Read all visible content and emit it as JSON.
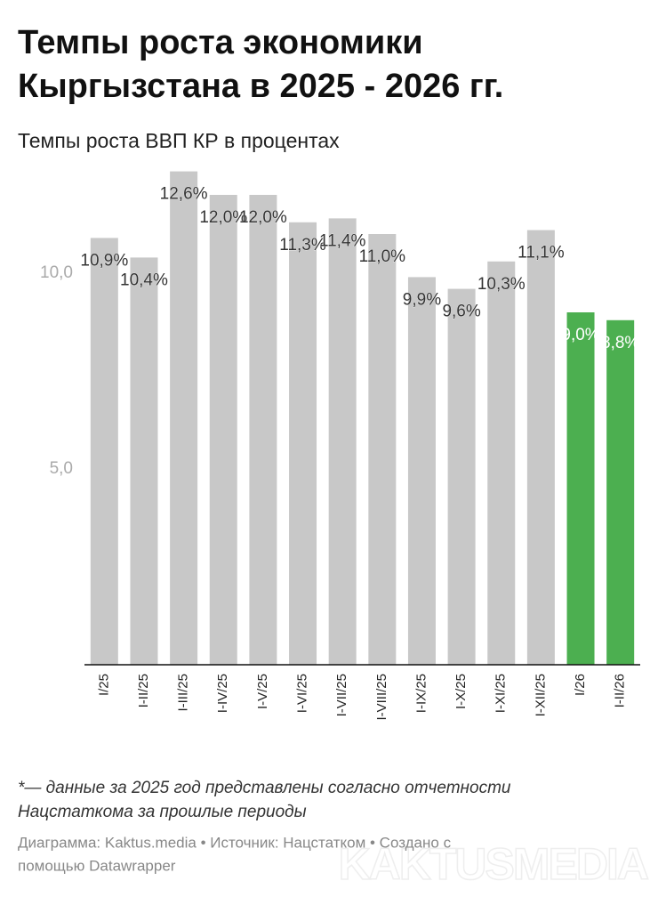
{
  "chart_data": {
    "type": "bar",
    "title": [
      "Темпы роста экономики",
      "Кыргызстана в 2025 - 2026 гг."
    ],
    "subtitle": "Темпы роста ВВП КР в процентах",
    "categories": [
      "I/25",
      "I-II/25",
      "I-III/25",
      "I-IV/25",
      "I-V/25",
      "I-VI/25",
      "I-VII/25",
      "I-VIII/25",
      "I-IX/25",
      "I-X/25",
      "I-XI/25",
      "I-XII/25",
      "I/26",
      "I-II/26"
    ],
    "values": [
      10.9,
      10.4,
      12.6,
      12.0,
      12.0,
      11.3,
      11.4,
      11.0,
      9.9,
      9.6,
      10.3,
      11.1,
      9.0,
      8.8
    ],
    "value_labels": [
      "10,9%",
      "10,4%",
      "12,6%",
      "12,0%",
      "12,0%",
      "11,3%",
      "11,4%",
      "11,0%",
      "9,9%",
      "9,6%",
      "10,3%",
      "11,1%",
      "9,0%",
      "8,8%"
    ],
    "colors": [
      "#c8c8c8",
      "#c8c8c8",
      "#c8c8c8",
      "#c8c8c8",
      "#c8c8c8",
      "#c8c8c8",
      "#c8c8c8",
      "#c8c8c8",
      "#c8c8c8",
      "#c8c8c8",
      "#c8c8c8",
      "#c8c8c8",
      "#4caf50",
      "#4caf50"
    ],
    "ylim": [
      0,
      13
    ],
    "yticks": [
      {
        "value": 5,
        "label": "5,0"
      },
      {
        "value": 10,
        "label": "10,0"
      }
    ],
    "grid": false,
    "notes": [
      "*— данные за 2025 год представлены согласно отчетности",
      "Нацстаткома за прошлые периоды"
    ],
    "credits": [
      "Диаграмма: Kaktus.media • Источник: Нацстатком • Создано с",
      "помощью Datawrapper"
    ],
    "watermark": "KAKTUSMEDIA"
  }
}
